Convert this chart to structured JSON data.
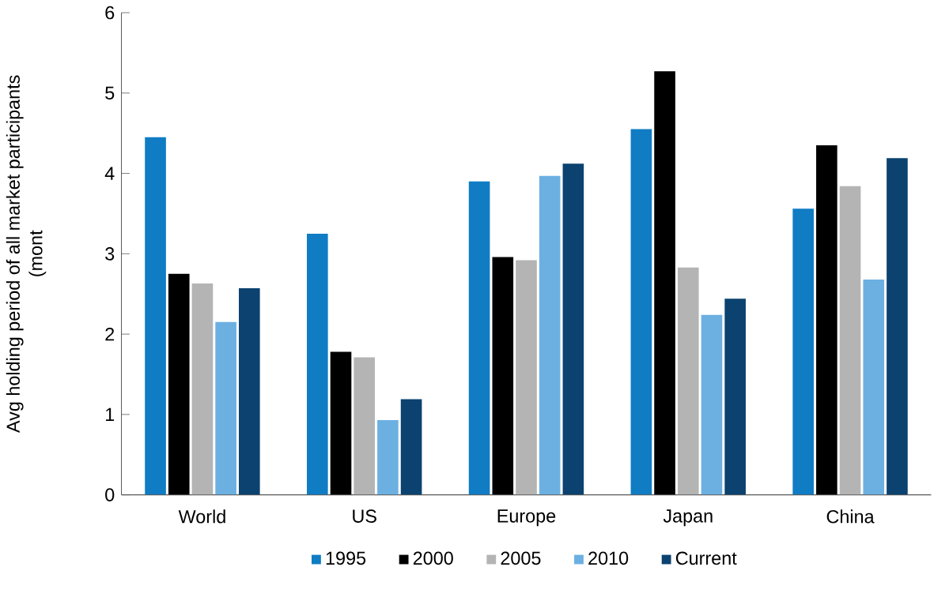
{
  "chart_data": {
    "type": "bar",
    "ylabel": "Avg holding period of all market participants (mont",
    "categories": [
      "World",
      "US",
      "Europe",
      "Japan",
      "China"
    ],
    "series": [
      {
        "name": "1995",
        "color": "#0f7cc4",
        "values": [
          4.45,
          3.25,
          3.9,
          4.55,
          3.56
        ]
      },
      {
        "name": "2000",
        "color": "#000000",
        "values": [
          2.75,
          1.78,
          2.96,
          5.27,
          4.35
        ]
      },
      {
        "name": "2005",
        "color": "#b4b4b4",
        "values": [
          2.63,
          1.71,
          2.92,
          2.83,
          3.84
        ]
      },
      {
        "name": "2010",
        "color": "#6cb0e2",
        "values": [
          2.15,
          0.93,
          3.97,
          2.24,
          2.68
        ]
      },
      {
        "name": "Current",
        "color": "#0b426f",
        "values": [
          2.57,
          1.19,
          4.12,
          2.44,
          4.19
        ]
      }
    ],
    "ylim": [
      0,
      6
    ],
    "yticks": [
      0,
      1,
      2,
      3,
      4,
      5,
      6
    ],
    "grid": false,
    "legend": "bottom"
  }
}
